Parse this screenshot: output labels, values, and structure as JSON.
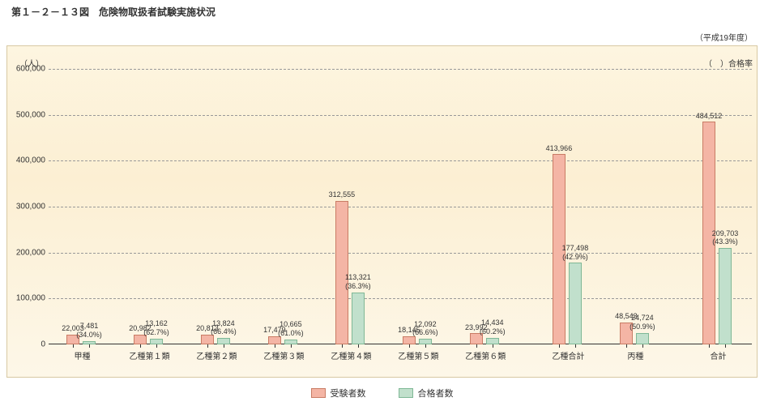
{
  "title": "第１－２－１３図　危険物取扱者試験実施状況",
  "subtitle_right": "（平成19年度）",
  "ylabel": "（人）",
  "pass_rate_label": "（　）合格率",
  "chart": {
    "type": "bar",
    "ylim": [
      0,
      600000
    ],
    "ytick_step": 100000,
    "yticks": [
      "0",
      "100,000",
      "200,000",
      "300,000",
      "400,000",
      "500,000",
      "600,000"
    ],
    "background_gradient": [
      "#fdf5e0",
      "#fcefd3",
      "#fdf7e8"
    ],
    "grid_color": "#999999",
    "series": [
      {
        "key": "examinees",
        "label": "受験者数",
        "color": "#f4b5a5",
        "border": "#c97c65"
      },
      {
        "key": "passers",
        "label": "合格者数",
        "color": "#c1e0cc",
        "border": "#7fb896"
      }
    ],
    "gap_after": [
      6,
      8
    ],
    "categories": [
      {
        "name": "甲種",
        "examinees": 22003,
        "passers": 7481,
        "pass_rate": "34.0%",
        "exam_label": "22,003",
        "pass_label": "7,481"
      },
      {
        "name": "乙種第１類",
        "examinees": 20982,
        "passers": 13162,
        "pass_rate": "62.7%",
        "exam_label": "20,982",
        "pass_label": "13,162"
      },
      {
        "name": "乙種第２類",
        "examinees": 20813,
        "passers": 13824,
        "pass_rate": "66.4%",
        "exam_label": "20,813",
        "pass_label": "13,824"
      },
      {
        "name": "乙種第３類",
        "examinees": 17479,
        "passers": 10665,
        "pass_rate": "61.0%",
        "exam_label": "17,479",
        "pass_label": "10,665"
      },
      {
        "name": "乙種第４類",
        "examinees": 312555,
        "passers": 113321,
        "pass_rate": "36.3%",
        "exam_label": "312,555",
        "pass_label": "113,321"
      },
      {
        "name": "乙種第５類",
        "examinees": 18145,
        "passers": 12092,
        "pass_rate": "66.6%",
        "exam_label": "18,145",
        "pass_label": "12,092"
      },
      {
        "name": "乙種第６類",
        "examinees": 23992,
        "passers": 14434,
        "pass_rate": "60.2%",
        "exam_label": "23,992",
        "pass_label": "14,434"
      },
      {
        "name": "乙種合計",
        "examinees": 413966,
        "passers": 177498,
        "pass_rate": "42.9%",
        "exam_label": "413,966",
        "pass_label": "177,498"
      },
      {
        "name": "丙種",
        "examinees": 48543,
        "passers": 24724,
        "pass_rate": "50.9%",
        "exam_label": "48,543",
        "pass_label": "24,724"
      },
      {
        "name": "合計",
        "examinees": 484512,
        "passers": 209703,
        "pass_rate": "43.3%",
        "exam_label": "484,512",
        "pass_label": "209,703"
      }
    ]
  }
}
